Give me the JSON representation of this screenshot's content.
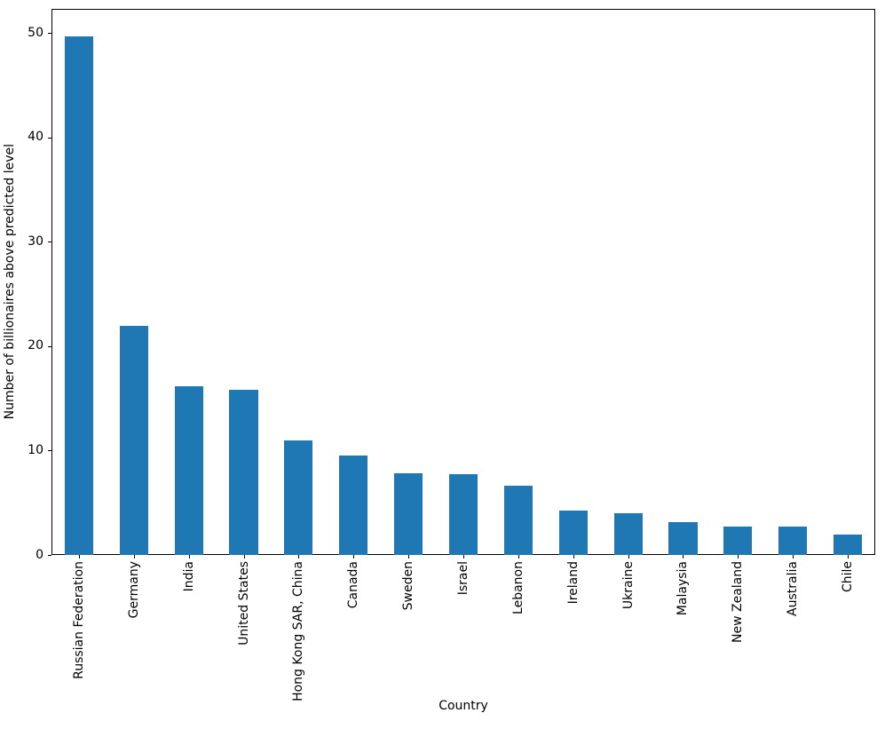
{
  "chart_data": {
    "type": "bar",
    "title": "",
    "xlabel": "Country",
    "ylabel": "Number of billionaires above predicted level",
    "categories": [
      "Russian Federation",
      "Germany",
      "India",
      "United States",
      "Hong Kong SAR, China",
      "Canada",
      "Sweden",
      "Israel",
      "Lebanon",
      "Ireland",
      "Ukraine",
      "Malaysia",
      "New Zealand",
      "Australia",
      "Chile"
    ],
    "values": [
      49.65,
      21.95,
      16.17,
      15.86,
      10.99,
      9.52,
      7.84,
      7.73,
      6.66,
      4.25,
      3.97,
      3.14,
      2.75,
      2.75,
      1.98
    ],
    "yticks": [
      0,
      10,
      20,
      30,
      40,
      50
    ],
    "ylim": [
      0,
      52.3
    ],
    "bar_color": "#1f77b4",
    "grid": false,
    "legend": null,
    "bar_rel_width": 0.52
  }
}
